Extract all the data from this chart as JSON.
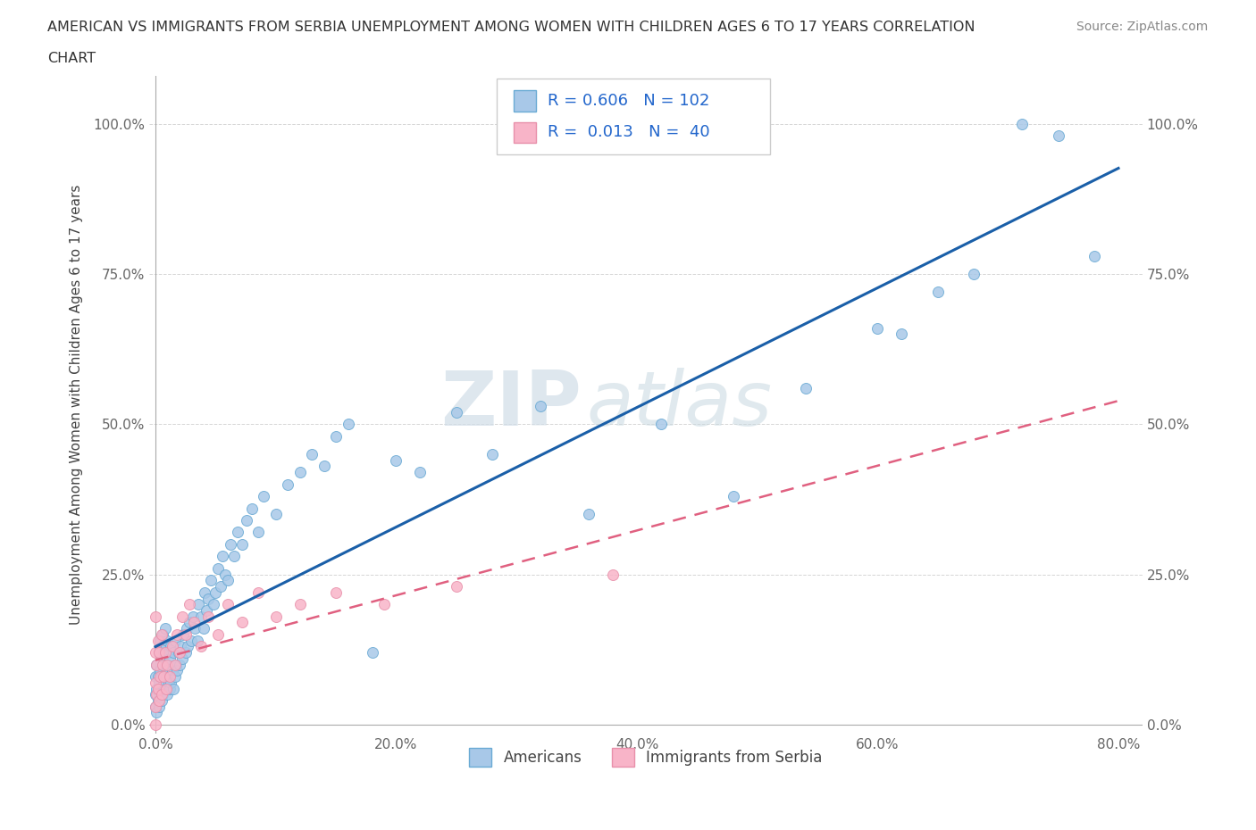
{
  "title_line1": "AMERICAN VS IMMIGRANTS FROM SERBIA UNEMPLOYMENT AMONG WOMEN WITH CHILDREN AGES 6 TO 17 YEARS CORRELATION",
  "title_line2": "CHART",
  "source": "Source: ZipAtlas.com",
  "ylabel": "Unemployment Among Women with Children Ages 6 to 17 years",
  "watermark_zip": "ZIP",
  "watermark_atlas": "atlas",
  "xlim": [
    -0.005,
    0.82
  ],
  "ylim": [
    -0.015,
    1.08
  ],
  "xticks": [
    0.0,
    0.2,
    0.4,
    0.6,
    0.8
  ],
  "xtick_labels": [
    "0.0%",
    "20.0%",
    "40.0%",
    "60.0%",
    "80.0%"
  ],
  "yticks": [
    0.0,
    0.25,
    0.5,
    0.75,
    1.0
  ],
  "ytick_labels": [
    "0.0%",
    "25.0%",
    "50.0%",
    "75.0%",
    "100.0%"
  ],
  "legend_entries": [
    {
      "label": "Americans",
      "dot_color": "#a8c8e8",
      "edge_color": "#6aaad4",
      "R": "0.606",
      "N": "102"
    },
    {
      "label": "Immigrants from Serbia",
      "dot_color": "#f8b4c8",
      "edge_color": "#e890aa",
      "R": "0.013",
      "N": " 40"
    }
  ],
  "am_line_color": "#1a5fa8",
  "sr_line_color": "#e06080",
  "background_color": "#ffffff",
  "grid_color": "#cccccc",
  "americans_x": [
    0.0,
    0.0,
    0.0,
    0.001,
    0.001,
    0.001,
    0.002,
    0.002,
    0.003,
    0.003,
    0.003,
    0.004,
    0.004,
    0.004,
    0.005,
    0.005,
    0.005,
    0.006,
    0.006,
    0.006,
    0.007,
    0.007,
    0.008,
    0.008,
    0.008,
    0.009,
    0.009,
    0.01,
    0.01,
    0.01,
    0.011,
    0.011,
    0.012,
    0.012,
    0.013,
    0.013,
    0.014,
    0.015,
    0.015,
    0.016,
    0.016,
    0.017,
    0.018,
    0.019,
    0.02,
    0.021,
    0.022,
    0.023,
    0.025,
    0.026,
    0.027,
    0.028,
    0.03,
    0.031,
    0.033,
    0.035,
    0.036,
    0.038,
    0.04,
    0.041,
    0.042,
    0.044,
    0.046,
    0.048,
    0.05,
    0.052,
    0.054,
    0.056,
    0.058,
    0.06,
    0.062,
    0.065,
    0.068,
    0.072,
    0.076,
    0.08,
    0.085,
    0.09,
    0.1,
    0.11,
    0.12,
    0.13,
    0.14,
    0.15,
    0.16,
    0.18,
    0.2,
    0.22,
    0.25,
    0.28,
    0.32,
    0.36,
    0.42,
    0.48,
    0.54,
    0.6,
    0.62,
    0.65,
    0.68,
    0.72,
    0.75,
    0.78
  ],
  "americans_y": [
    0.03,
    0.05,
    0.08,
    0.02,
    0.06,
    0.1,
    0.04,
    0.08,
    0.03,
    0.07,
    0.12,
    0.05,
    0.09,
    0.14,
    0.04,
    0.08,
    0.13,
    0.05,
    0.1,
    0.15,
    0.07,
    0.12,
    0.06,
    0.1,
    0.16,
    0.08,
    0.13,
    0.05,
    0.09,
    0.14,
    0.07,
    0.12,
    0.06,
    0.11,
    0.07,
    0.13,
    0.09,
    0.06,
    0.12,
    0.08,
    0.14,
    0.1,
    0.09,
    0.12,
    0.1,
    0.13,
    0.11,
    0.15,
    0.12,
    0.16,
    0.13,
    0.17,
    0.14,
    0.18,
    0.16,
    0.14,
    0.2,
    0.18,
    0.16,
    0.22,
    0.19,
    0.21,
    0.24,
    0.2,
    0.22,
    0.26,
    0.23,
    0.28,
    0.25,
    0.24,
    0.3,
    0.28,
    0.32,
    0.3,
    0.34,
    0.36,
    0.32,
    0.38,
    0.35,
    0.4,
    0.42,
    0.45,
    0.43,
    0.48,
    0.5,
    0.12,
    0.44,
    0.42,
    0.52,
    0.45,
    0.53,
    0.35,
    0.5,
    0.38,
    0.56,
    0.66,
    0.65,
    0.72,
    0.75,
    1.0,
    0.98,
    0.78
  ],
  "serbia_x": [
    0.0,
    0.0,
    0.0,
    0.0,
    0.0,
    0.001,
    0.001,
    0.002,
    0.002,
    0.003,
    0.003,
    0.004,
    0.005,
    0.005,
    0.006,
    0.007,
    0.008,
    0.009,
    0.01,
    0.012,
    0.014,
    0.016,
    0.018,
    0.02,
    0.022,
    0.025,
    0.028,
    0.032,
    0.038,
    0.044,
    0.052,
    0.06,
    0.072,
    0.085,
    0.1,
    0.12,
    0.15,
    0.19,
    0.25,
    0.38
  ],
  "serbia_y": [
    0.0,
    0.03,
    0.07,
    0.12,
    0.18,
    0.05,
    0.1,
    0.06,
    0.14,
    0.04,
    0.12,
    0.08,
    0.05,
    0.15,
    0.1,
    0.08,
    0.12,
    0.06,
    0.1,
    0.08,
    0.13,
    0.1,
    0.15,
    0.12,
    0.18,
    0.15,
    0.2,
    0.17,
    0.13,
    0.18,
    0.15,
    0.2,
    0.17,
    0.22,
    0.18,
    0.2,
    0.22,
    0.2,
    0.23,
    0.25
  ]
}
